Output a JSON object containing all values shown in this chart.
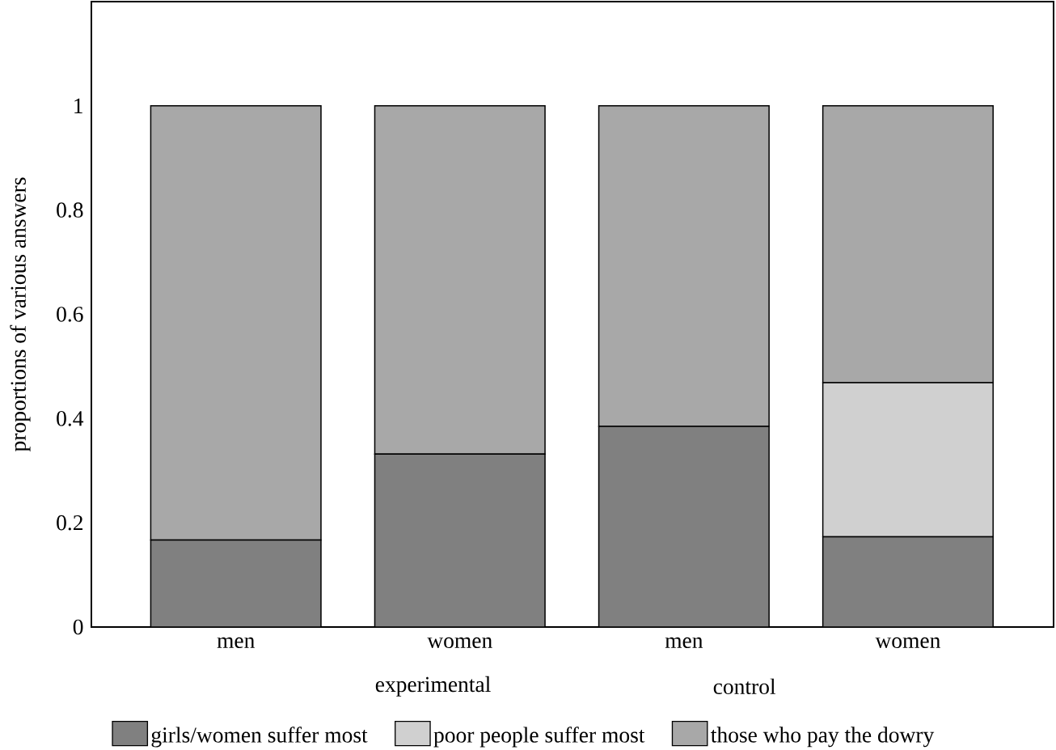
{
  "chart_data": {
    "type": "bar",
    "stacked": true,
    "ylabel": "proportions of various answers",
    "categories": [
      "men",
      "women",
      "men",
      "women"
    ],
    "annotations": [
      "experimental",
      "control"
    ],
    "series": [
      {
        "name": "girls/women suffer most",
        "color": "#808080",
        "values": [
          0.167,
          0.332,
          0.385,
          0.173
        ]
      },
      {
        "name": "poor people suffer most",
        "color": "#d0d0d0",
        "values": [
          0,
          0,
          0,
          0.296
        ]
      },
      {
        "name": "those who pay the dowry",
        "color": "#a8a8a8",
        "values": [
          0.833,
          0.668,
          0.615,
          0.531
        ]
      }
    ],
    "ylim": [
      0,
      1.2
    ],
    "yticks": [
      0,
      0.2,
      0.4,
      0.6,
      0.8,
      1
    ],
    "grid": false,
    "legend": "bottom"
  }
}
